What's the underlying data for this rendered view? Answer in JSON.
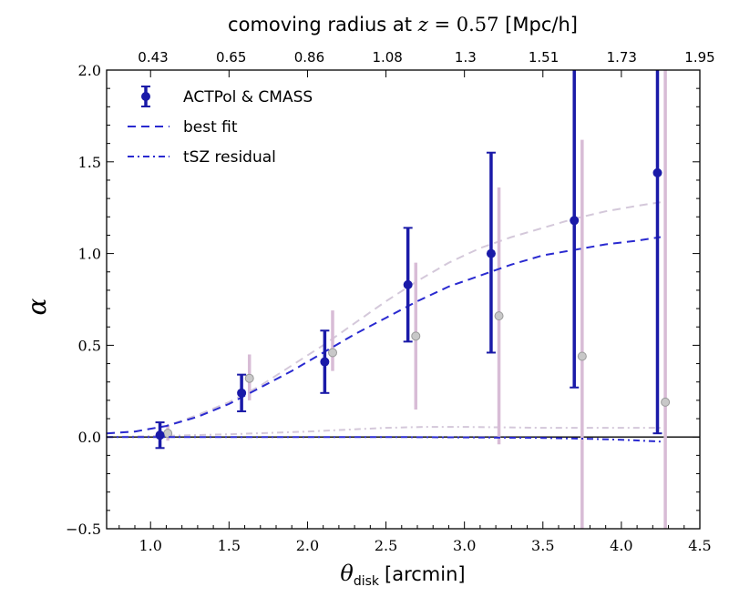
{
  "chart_data": {
    "type": "scatter",
    "title": "",
    "xlabel": "θ_disk [arcmin]",
    "ylabel": "α",
    "top_axis_label": "comoving radius at z = 0.57 [Mpc/h]",
    "top_axis_label_parts": {
      "prefix": "comoving radius at ",
      "var": "z",
      "eq": " = ",
      "num": "0.57",
      "suffix": " [Mpc/h]"
    },
    "xlabel_parts": {
      "symbol": "θ",
      "sub": "disk",
      "unit": "[arcmin]"
    },
    "xlim": [
      0.72,
      4.5
    ],
    "ylim": [
      -0.5,
      2.0
    ],
    "x_ticks": [
      "1.0",
      "1.5",
      "2.0",
      "2.5",
      "3.0",
      "3.5",
      "4.0",
      "4.5"
    ],
    "y_ticks": [
      "−0.5",
      "0.0",
      "0.5",
      "1.0",
      "1.5",
      "2.0"
    ],
    "top_ticks": [
      "0.43",
      "0.65",
      "0.86",
      "1.08",
      "1.3",
      "1.51",
      "1.73",
      "1.95"
    ],
    "grid": false,
    "legend_position": "top-left",
    "legend": [
      {
        "label": "ACTPol & CMASS",
        "style": "errorbar-point"
      },
      {
        "label": "best fit",
        "style": "dashed"
      },
      {
        "label": "tSZ residual",
        "style": "dashdot"
      }
    ],
    "colors": {
      "main": "#1a1aa8",
      "main_fit": "#2a2ad0",
      "faded_point": "#c8c8c8",
      "faded_errorbar": "#d8bcd6",
      "faded_line": "#d4c8da",
      "zero_line": "#000000"
    },
    "series": [
      {
        "name": "ACTPol & CMASS",
        "kind": "errorbar",
        "x": [
          1.06,
          1.58,
          2.11,
          2.64,
          3.17,
          3.7,
          4.23
        ],
        "y": [
          0.01,
          0.24,
          0.41,
          0.83,
          1.0,
          1.18,
          1.44
        ],
        "yerr_low": [
          0.07,
          0.1,
          0.17,
          0.31,
          0.54,
          0.91,
          1.42
        ],
        "yerr_high": [
          0.07,
          0.1,
          0.17,
          0.31,
          0.55,
          0.9,
          0.6
        ]
      },
      {
        "name": "best fit",
        "kind": "line",
        "x": [
          0.72,
          0.9,
          1.1,
          1.3,
          1.5,
          1.7,
          1.9,
          2.1,
          2.3,
          2.5,
          2.7,
          2.9,
          3.1,
          3.3,
          3.5,
          3.7,
          3.9,
          4.1,
          4.25
        ],
        "y": [
          0.02,
          0.03,
          0.06,
          0.11,
          0.18,
          0.27,
          0.36,
          0.46,
          0.56,
          0.65,
          0.74,
          0.82,
          0.88,
          0.94,
          0.99,
          1.02,
          1.05,
          1.07,
          1.09
        ]
      },
      {
        "name": "tSZ residual",
        "kind": "line",
        "x": [
          0.72,
          1.0,
          1.5,
          2.0,
          2.5,
          3.0,
          3.5,
          3.8,
          4.0,
          4.25
        ],
        "y": [
          0.0,
          0.0,
          0.0,
          0.0,
          0.0,
          -0.002,
          -0.005,
          -0.01,
          -0.015,
          -0.025
        ]
      },
      {
        "kind": "errorbar",
        "faded": true,
        "x": [
          1.11,
          1.63,
          2.16,
          2.69,
          3.22,
          3.75,
          4.28
        ],
        "y": [
          0.02,
          0.32,
          0.46,
          0.55,
          0.66,
          0.44,
          0.19
        ],
        "yerr_low": [
          0.04,
          0.12,
          0.1,
          0.4,
          0.7,
          1.0,
          1.0
        ],
        "yerr_high": [
          0.04,
          0.13,
          0.23,
          0.4,
          0.7,
          1.18,
          1.81
        ]
      },
      {
        "kind": "line",
        "faded": true,
        "x": [
          0.72,
          0.9,
          1.1,
          1.3,
          1.5,
          1.7,
          1.9,
          2.1,
          2.3,
          2.5,
          2.7,
          2.9,
          3.1,
          3.3,
          3.5,
          3.7,
          3.9,
          4.1,
          4.25
        ],
        "y": [
          0.02,
          0.03,
          0.06,
          0.12,
          0.19,
          0.28,
          0.39,
          0.5,
          0.62,
          0.74,
          0.85,
          0.95,
          1.03,
          1.09,
          1.14,
          1.19,
          1.23,
          1.26,
          1.28
        ]
      },
      {
        "kind": "line",
        "faded": true,
        "x": [
          0.72,
          1.0,
          1.5,
          2.0,
          2.5,
          2.75,
          3.0,
          3.5,
          4.0,
          4.25
        ],
        "y": [
          0.0,
          0.005,
          0.015,
          0.03,
          0.05,
          0.055,
          0.055,
          0.05,
          0.05,
          0.05
        ]
      }
    ]
  }
}
